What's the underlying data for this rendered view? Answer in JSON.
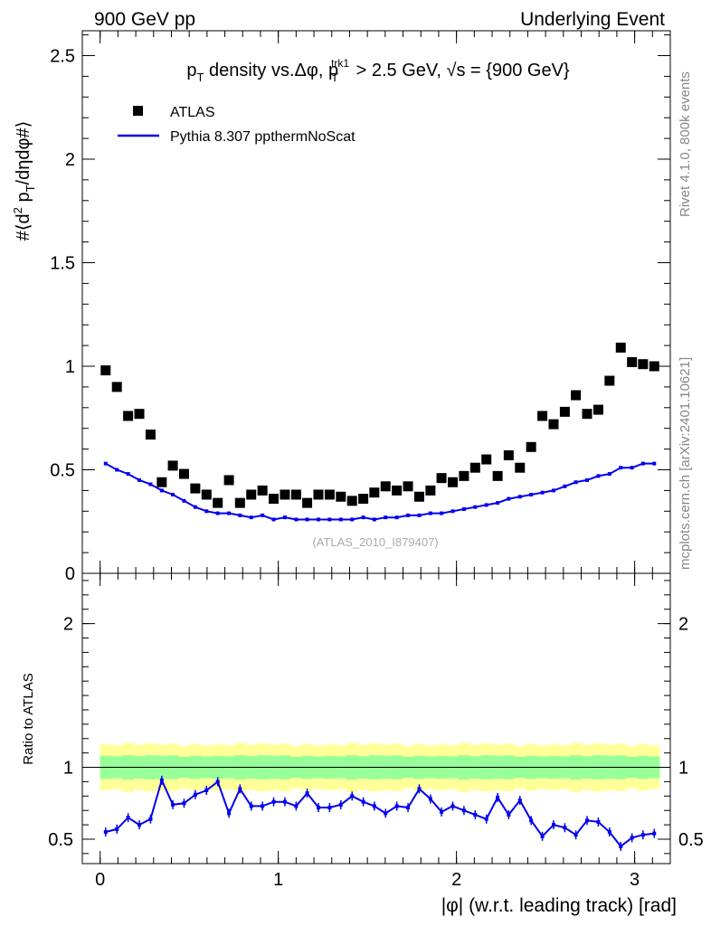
{
  "header": {
    "left": "900 GeV pp",
    "right": "Underlying Event"
  },
  "side_labels": {
    "rivet": "Rivet 4.1.0,  800k events",
    "mcplots": "mcplots.cern.ch [arXiv:2401.10621]"
  },
  "watermark": "(ATLAS_2010_I879407)",
  "colors": {
    "data": "#000000",
    "mc": "#0000ee",
    "band_inner": "#99ff99",
    "band_outer": "#ffff99"
  },
  "chart_data": [
    {
      "type": "scatter",
      "panel": "main",
      "title": "p_T density vs.Δφ, p_T^trk1 > 2.5 GeV, √s = {900 GeV}",
      "ylabel": "#⟨d² p_T/dηdφ#⟩",
      "xlim": [
        -0.1,
        3.2
      ],
      "ylim": [
        0,
        2.62
      ],
      "yticks": [
        0,
        0.5,
        1,
        1.5,
        2,
        2.5
      ],
      "ytick_labels": [
        "0",
        "0.5",
        "1",
        "1.5",
        "2",
        "2.5"
      ],
      "legend": {
        "position": "top-left",
        "entries": [
          "ATLAS",
          "Pythia 8.307 ppthermNoScat"
        ]
      },
      "x": [
        0.031,
        0.094,
        0.157,
        0.22,
        0.283,
        0.346,
        0.408,
        0.471,
        0.534,
        0.597,
        0.66,
        0.723,
        0.785,
        0.848,
        0.911,
        0.974,
        1.037,
        1.1,
        1.162,
        1.225,
        1.288,
        1.351,
        1.414,
        1.477,
        1.539,
        1.602,
        1.665,
        1.728,
        1.791,
        1.854,
        1.916,
        1.979,
        2.042,
        2.105,
        2.168,
        2.231,
        2.293,
        2.356,
        2.419,
        2.482,
        2.545,
        2.608,
        2.67,
        2.733,
        2.796,
        2.859,
        2.922,
        2.985,
        3.047,
        3.11
      ],
      "series": [
        {
          "name": "ATLAS",
          "style": "markers",
          "values": [
            0.98,
            0.9,
            0.76,
            0.77,
            0.67,
            0.44,
            0.52,
            0.48,
            0.41,
            0.38,
            0.34,
            0.45,
            0.34,
            0.38,
            0.4,
            0.36,
            0.38,
            0.38,
            0.34,
            0.38,
            0.38,
            0.37,
            0.35,
            0.36,
            0.39,
            0.42,
            0.4,
            0.42,
            0.37,
            0.4,
            0.46,
            0.44,
            0.47,
            0.51,
            0.55,
            0.47,
            0.57,
            0.51,
            0.61,
            0.76,
            0.72,
            0.78,
            0.86,
            0.77,
            0.79,
            0.93,
            1.09,
            1.02,
            1.01,
            1.0
          ]
        },
        {
          "name": "Pythia 8.307 ppthermNoScat",
          "style": "line",
          "values": [
            0.53,
            0.5,
            0.48,
            0.45,
            0.43,
            0.4,
            0.38,
            0.35,
            0.32,
            0.3,
            0.29,
            0.29,
            0.28,
            0.27,
            0.28,
            0.26,
            0.27,
            0.26,
            0.26,
            0.26,
            0.26,
            0.26,
            0.26,
            0.27,
            0.26,
            0.27,
            0.27,
            0.28,
            0.28,
            0.29,
            0.29,
            0.3,
            0.31,
            0.32,
            0.33,
            0.34,
            0.36,
            0.37,
            0.38,
            0.39,
            0.4,
            0.42,
            0.44,
            0.45,
            0.47,
            0.48,
            0.51,
            0.51,
            0.53,
            0.53
          ]
        }
      ]
    },
    {
      "type": "line",
      "panel": "ratio",
      "xlabel": "|φ| (w.r.t. leading track) [rad]",
      "ylabel": "Ratio to ATLAS",
      "xlim": [
        -0.1,
        3.2
      ],
      "ylim": [
        0.33,
        2.35
      ],
      "xticks": [
        0,
        1,
        2,
        3
      ],
      "xtick_labels": [
        "0",
        "1",
        "2",
        "3"
      ],
      "yticks": [
        0.5,
        1,
        2
      ],
      "ytick_labels": [
        "0.5",
        "1",
        "2"
      ],
      "bands": {
        "inner": [
          0.92,
          1.08
        ],
        "outer": [
          0.84,
          1.16
        ]
      },
      "x": [
        0.031,
        0.094,
        0.157,
        0.22,
        0.283,
        0.346,
        0.408,
        0.471,
        0.534,
        0.597,
        0.66,
        0.723,
        0.785,
        0.848,
        0.911,
        0.974,
        1.037,
        1.1,
        1.162,
        1.225,
        1.288,
        1.351,
        1.414,
        1.477,
        1.539,
        1.602,
        1.665,
        1.728,
        1.791,
        1.854,
        1.916,
        1.979,
        2.042,
        2.105,
        2.168,
        2.231,
        2.293,
        2.356,
        2.419,
        2.482,
        2.545,
        2.608,
        2.67,
        2.733,
        2.796,
        2.859,
        2.922,
        2.985,
        3.047,
        3.11
      ],
      "series": [
        {
          "name": "Pythia 8.307 ppthermNoScat / ATLAS",
          "values": [
            0.55,
            0.57,
            0.65,
            0.6,
            0.64,
            0.91,
            0.74,
            0.75,
            0.81,
            0.84,
            0.9,
            0.68,
            0.85,
            0.73,
            0.73,
            0.76,
            0.76,
            0.73,
            0.82,
            0.72,
            0.72,
            0.74,
            0.8,
            0.76,
            0.73,
            0.68,
            0.73,
            0.72,
            0.85,
            0.78,
            0.69,
            0.73,
            0.7,
            0.67,
            0.64,
            0.79,
            0.67,
            0.77,
            0.63,
            0.52,
            0.6,
            0.58,
            0.53,
            0.63,
            0.62,
            0.55,
            0.45,
            0.51,
            0.53,
            0.54
          ]
        }
      ]
    }
  ]
}
